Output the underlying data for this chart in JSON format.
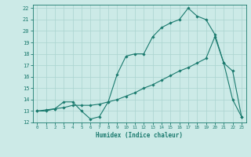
{
  "title": "",
  "xlabel": "Humidex (Indice chaleur)",
  "xlim": [
    -0.5,
    23.5
  ],
  "ylim": [
    12,
    22.3
  ],
  "yticks": [
    12,
    13,
    14,
    15,
    16,
    17,
    18,
    19,
    20,
    21,
    22
  ],
  "xticks": [
    0,
    1,
    2,
    3,
    4,
    5,
    6,
    7,
    8,
    9,
    10,
    11,
    12,
    13,
    14,
    15,
    16,
    17,
    18,
    19,
    20,
    21,
    22,
    23
  ],
  "bg_color": "#cceae7",
  "grid_color": "#aad4d0",
  "line_color": "#1a7a6e",
  "line1_x": [
    0,
    1,
    2,
    3,
    4,
    5,
    6,
    7,
    8,
    9,
    10,
    11,
    12,
    13,
    14,
    15,
    16,
    17,
    18,
    19,
    20,
    21,
    22,
    23
  ],
  "line1_y": [
    13.0,
    13.0,
    13.2,
    13.8,
    13.8,
    13.0,
    12.3,
    12.5,
    13.8,
    16.2,
    17.8,
    18.0,
    18.0,
    19.5,
    20.3,
    20.7,
    21.0,
    22.0,
    21.3,
    21.0,
    19.7,
    17.2,
    14.0,
    12.5
  ],
  "line2_x": [
    0,
    1,
    2,
    3,
    4,
    5,
    6,
    7,
    8,
    9,
    10,
    11,
    12,
    13,
    14,
    15,
    16,
    17,
    18,
    19,
    20,
    21,
    22,
    23
  ],
  "line2_y": [
    13.0,
    13.1,
    13.2,
    13.3,
    13.5,
    13.5,
    13.5,
    13.6,
    13.8,
    14.0,
    14.3,
    14.6,
    15.0,
    15.3,
    15.7,
    16.1,
    16.5,
    16.8,
    17.2,
    17.6,
    19.5,
    17.2,
    16.5,
    12.5
  ]
}
